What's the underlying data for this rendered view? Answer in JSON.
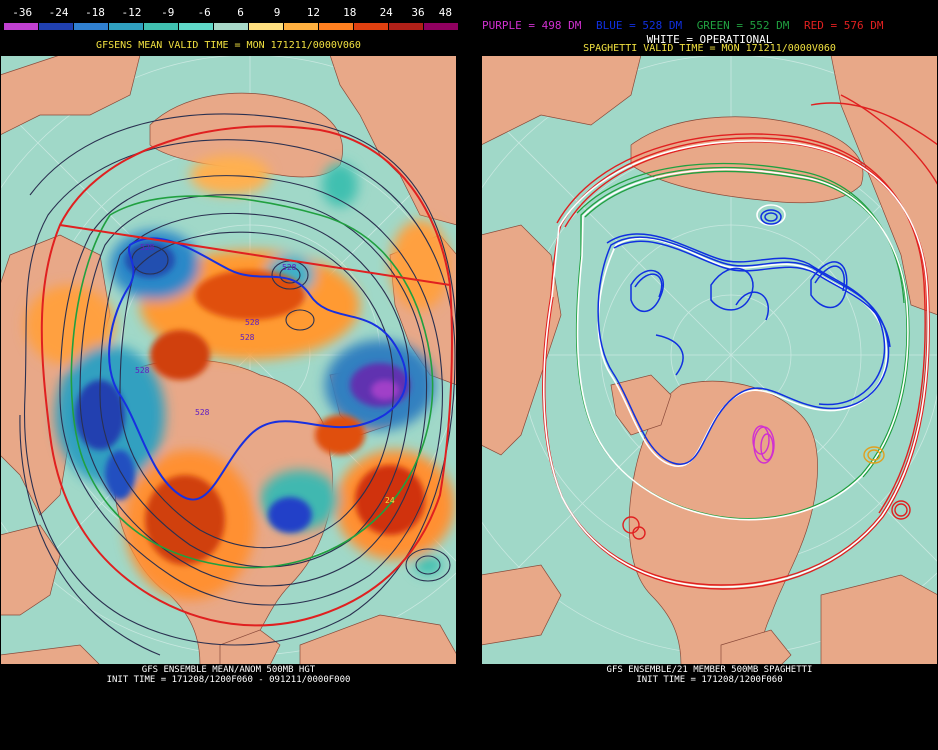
{
  "scale": {
    "labels": [
      "-36",
      "-24",
      "-18",
      "-12",
      "-9",
      "-6",
      "6",
      "9",
      "12",
      "18",
      "24",
      "36",
      "48"
    ],
    "colors": [
      "#c040d0",
      "#2040b0",
      "#3080d0",
      "#30a0c0",
      "#40c0b0",
      "#60d8c8",
      "#a8d8c8",
      "#ffe080",
      "#ffb040",
      "#ff8020",
      "#e04010",
      "#b02018",
      "#900060"
    ]
  },
  "left": {
    "valid_title": "GFSENS MEAN VALID TIME = MON 171211/0000V060",
    "footer_line1": "GFS ENSEMBLE MEAN/ANOM 500MB HGT",
    "footer_line2": "INIT TIME = 171208/1200F060 - 091211/0000F000",
    "contour_labels": [
      "528",
      "528",
      "528",
      "528",
      "528",
      "528"
    ],
    "anomaly_label": "24"
  },
  "right": {
    "legend": [
      {
        "text": "PURPLE = 498 DM",
        "color": "#d030d0"
      },
      {
        "text": "BLUE = 528 DM",
        "color": "#1030e0"
      },
      {
        "text": "GREEN = 552 DM",
        "color": "#20a040"
      },
      {
        "text": "RED = 576 DM",
        "color": "#e02020"
      }
    ],
    "white_label": "WHITE = OPERATIONAL",
    "valid_title": "SPAGHETTI VALID TIME = MON 171211/0000V060",
    "footer_line1": "GFS ENSEMBLE/21 MEMBER 500MB SPAGHETTI",
    "footer_line2": "INIT TIME = 171208/1200F060"
  },
  "colors": {
    "ocean": "#a0d8c8",
    "land": "#e8a888",
    "title_yellow": "#f0e040",
    "white": "#ffffff"
  }
}
